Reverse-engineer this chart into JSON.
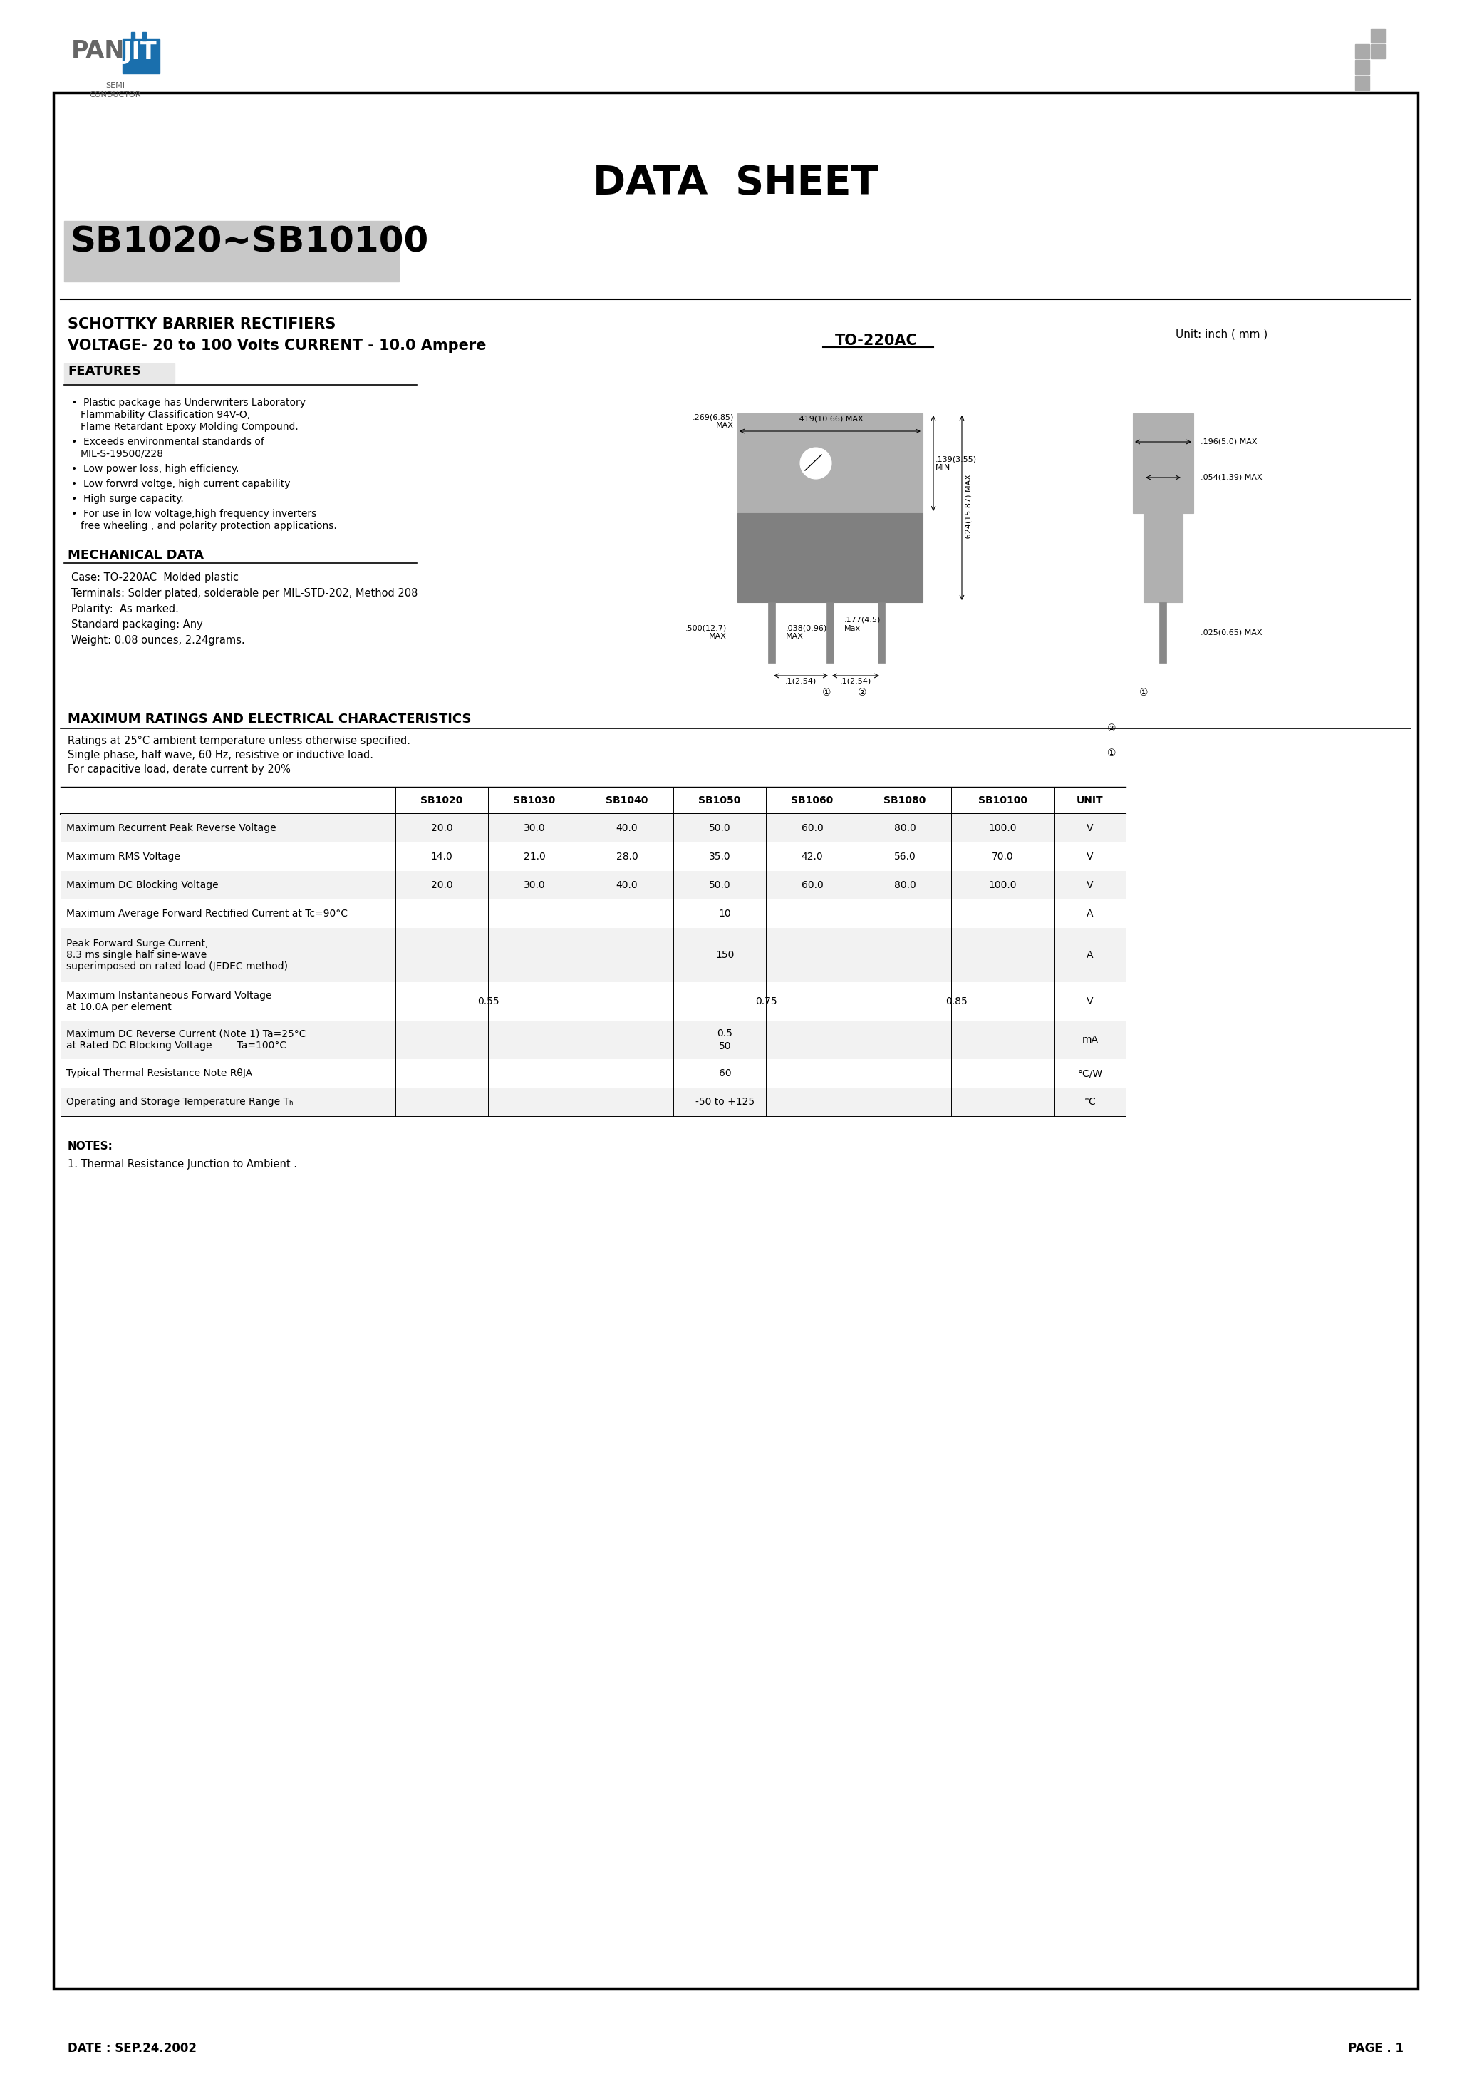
{
  "title": "DATA  SHEET",
  "part_number": "SB1020~SB10100",
  "subtitle1": "SCHOTTKY BARRIER RECTIFIERS",
  "subtitle2": "VOLTAGE- 20 to 100 Volts CURRENT - 10.0 Ampere",
  "package": "TO-220AC",
  "unit_note": "Unit: inch ( mm )",
  "features_title": "FEATURES",
  "features": [
    "Plastic package has Underwriters Laboratory\nFlammability Classification 94V-O,\nFlame Retardant Epoxy Molding Compound.",
    "Exceeds environmental standards of\nMIL-S-19500/228",
    "Low power loss, high efficiency.",
    "Low forwrd voltge, high current capability",
    "High surge capacity.",
    "For use in low voltage,high frequency inverters\nfree wheeling , and polarity protection applications."
  ],
  "mech_title": "MECHANICAL DATA",
  "mech_data": [
    "Case: TO-220AC  Molded plastic",
    "Terminals: Solder plated, solderable per MIL-STD-202, Method 208",
    "Polarity:  As marked.",
    "Standard packaging: Any",
    "Weight: 0.08 ounces, 2.24grams."
  ],
  "ratings_title": "MAXIMUM RATINGS AND ELECTRICAL CHARACTERISTICS",
  "ratings_note1": "Ratings at 25°C ambient temperature unless otherwise specified.",
  "ratings_note2": "Single phase, half wave, 60 Hz, resistive or inductive load.",
  "ratings_note3": "For capacitive load, derate current by 20%",
  "table_headers": [
    "",
    "SB1020",
    "SB1030",
    "SB1040",
    "SB1050",
    "SB1060",
    "SB1080",
    "SB10100",
    "UNIT"
  ],
  "table_rows": [
    {
      "param": "Maximum Recurrent Peak Reverse Voltage",
      "values": [
        "20.0",
        "30.0",
        "40.0",
        "50.0",
        "60.0",
        "80.0",
        "100.0"
      ],
      "unit": "V"
    },
    {
      "param": "Maximum RMS Voltage",
      "values": [
        "14.0",
        "21.0",
        "28.0",
        "35.0",
        "42.0",
        "56.0",
        "70.0"
      ],
      "unit": "V"
    },
    {
      "param": "Maximum DC Blocking Voltage",
      "values": [
        "20.0",
        "30.0",
        "40.0",
        "50.0",
        "60.0",
        "80.0",
        "100.0"
      ],
      "unit": "V"
    },
    {
      "param": "Maximum Average Forward Rectified Current at Tc=90°C",
      "values_merged": "10",
      "unit": "A"
    },
    {
      "param": "Peak Forward Surge Current,\n8.3 ms single half sine-wave\nsuperimposed on rated load (JEDEC method)",
      "values_merged": "150",
      "unit": "A"
    },
    {
      "param": "Maximum Instantaneous Forward Voltage\nat 10.0A per element",
      "values_groups": [
        {
          "cols": [
            0,
            1
          ],
          "val": "0.55"
        },
        {
          "cols": [
            3,
            4
          ],
          "val": "0.75"
        },
        {
          "cols": [
            5,
            6
          ],
          "val": "0.85"
        }
      ],
      "unit": "V"
    },
    {
      "param": "Maximum DC Reverse Current (Note 1) Ta=25°C\nat Rated DC Blocking Voltage        Ta=100°C",
      "values_two": [
        "0.5",
        "50"
      ],
      "unit": "mA"
    },
    {
      "param": "Typical Thermal Resistance Note RθJA",
      "values_merged": "60",
      "unit": "°C/W"
    },
    {
      "param": "Operating and Storage Temperature Range Tₕ",
      "values_merged": "-50 to +125",
      "unit": "°C"
    }
  ],
  "notes_title": "NOTES:",
  "note1": "1. Thermal Resistance Junction to Ambient .",
  "date": "DATE : SEP.24.2002",
  "page": "PAGE . 1",
  "panjit_gray": "#666666",
  "panjit_blue": "#1a6fad",
  "logo_cross_color": "#aaaaaa",
  "box_color": "#000000",
  "gray_bg_part": "#c8c8c8",
  "dim_line_color": "#000000",
  "pkg_body_dark": "#808080",
  "pkg_body_light": "#b0b0b0",
  "pkg_lead_color": "#888888"
}
